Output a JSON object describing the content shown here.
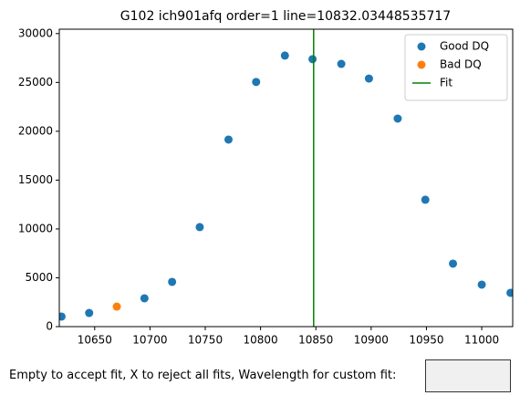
{
  "chart_data": {
    "type": "scatter",
    "title": "G102 ich901afq order=1 line=10832.03448535717",
    "xlim": [
      10618,
      11028
    ],
    "xticks": [
      10650,
      10700,
      10750,
      10800,
      10850,
      10900,
      10950,
      11000
    ],
    "ylim": [
      0,
      30450
    ],
    "yticks": [
      0,
      5000,
      10000,
      15000,
      20000,
      25000,
      30000
    ],
    "legend": "upper right",
    "series": [
      {
        "name": "Good DQ",
        "color": "#1f77b4",
        "kind": "scatter",
        "x": [
          10620,
          10645,
          10695,
          10720,
          10745,
          10771,
          10796,
          10822,
          10847,
          10873,
          10898,
          10924,
          10949,
          10974,
          11000,
          11026
        ],
        "values": [
          1030,
          1400,
          2900,
          4580,
          10190,
          19150,
          25050,
          27750,
          27380,
          26900,
          25400,
          21300,
          12990,
          6450,
          4300,
          3460
        ]
      },
      {
        "name": "Bad DQ",
        "color": "#ff7f0e",
        "kind": "scatter",
        "x": [
          10670
        ],
        "values": [
          2050
        ]
      },
      {
        "name": "Fit",
        "color": "#008000",
        "kind": "line",
        "x": [
          10848,
          10848
        ],
        "values": [
          0,
          30450
        ]
      }
    ]
  },
  "prompt": {
    "label": "Empty to accept fit, X to reject all fits, Wavelength for custom fit:"
  }
}
